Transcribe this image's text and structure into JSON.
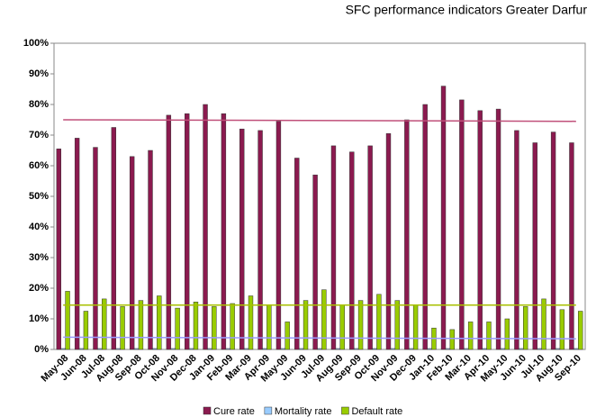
{
  "chart_data": {
    "type": "bar",
    "title": "SFC performance indicators Greater Darfur",
    "categories": [
      "May-08",
      "Jun-08",
      "Jul-08",
      "Aug-08",
      "Sep-08",
      "Oct-08",
      "Nov-08",
      "Dec-08",
      "Jan-09",
      "Feb-09",
      "Mar-09",
      "Apr-09",
      "May-09",
      "Jun-09",
      "Jul-09",
      "Aug-09",
      "Sep-09",
      "Oct-09",
      "Nov-09",
      "Dec-09",
      "Jan-10",
      "Feb-10",
      "Mar-10",
      "Apr-10",
      "May-10",
      "Jun-10",
      "Jul-10",
      "Aug-10",
      "Sep-10"
    ],
    "series": [
      {
        "name": "Cure rate",
        "color": "#8b1a4f",
        "values": [
          65.5,
          69,
          66,
          72.5,
          63,
          65,
          76.5,
          77,
          80,
          77,
          72,
          71.5,
          74.5,
          62.5,
          57,
          66.5,
          64.5,
          66.5,
          70.5,
          75,
          80,
          86,
          81.5,
          78,
          78.5,
          71.5,
          67.5,
          71,
          67.5
        ]
      },
      {
        "name": "Mortality rate",
        "color": "#99ccff",
        "values": [
          0.3,
          0.3,
          0.3,
          0.3,
          0.3,
          0.3,
          0.3,
          0.3,
          0.3,
          0.3,
          0.3,
          0.3,
          0.3,
          0.3,
          0.3,
          0.3,
          0.3,
          0.3,
          0.3,
          0.3,
          0.3,
          0.3,
          0.3,
          0.3,
          0.3,
          0.3,
          0.3,
          0.3,
          0.3
        ]
      },
      {
        "name": "Default rate",
        "color": "#99cc00",
        "values": [
          19,
          12.5,
          16.5,
          14,
          16,
          17.5,
          13.5,
          15.5,
          14,
          15,
          17.5,
          14.5,
          9,
          16,
          19.5,
          14.5,
          16,
          18,
          16,
          14.5,
          7,
          6.5,
          9,
          9,
          10,
          14,
          16.5,
          13,
          12.5
        ]
      }
    ],
    "trend_lines": [
      {
        "color": "#c0507a",
        "values": [
          75,
          74.5
        ]
      },
      {
        "color": "#9999ff",
        "values": [
          4,
          3.5
        ]
      },
      {
        "color": "#a8c000",
        "values": [
          14.5,
          14.5
        ]
      }
    ],
    "ylim": [
      0,
      100
    ],
    "yticks": [
      {
        "value": 0,
        "label": "0%"
      },
      {
        "value": 10,
        "label": "10%"
      },
      {
        "value": 20,
        "label": "20%"
      },
      {
        "value": 30,
        "label": "30%"
      },
      {
        "value": 40,
        "label": "40%"
      },
      {
        "value": 50,
        "label": "50%"
      },
      {
        "value": 60,
        "label": "60%"
      },
      {
        "value": 70,
        "label": "70%"
      },
      {
        "value": 80,
        "label": "80%"
      },
      {
        "value": 90,
        "label": "90%"
      },
      {
        "value": 100,
        "label": "100%"
      }
    ]
  }
}
